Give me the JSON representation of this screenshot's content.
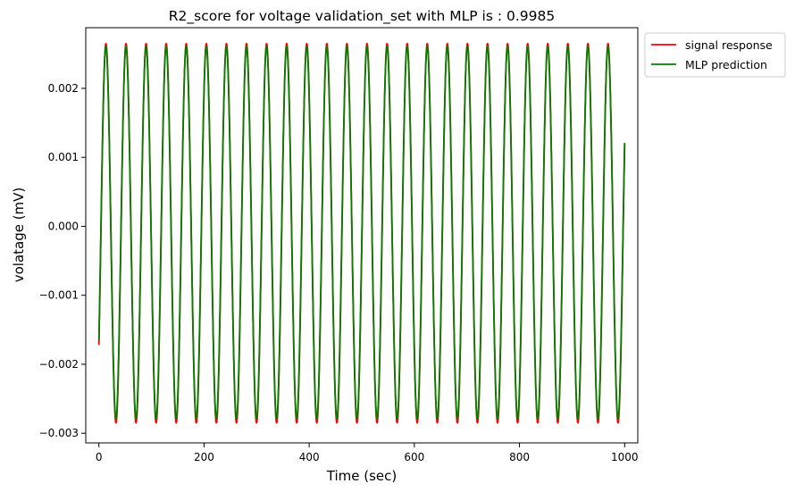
{
  "chart_data": {
    "type": "line",
    "title": "R2_score for voltage validation_set with MLP is : 0.9985",
    "xlabel": "Time (sec)",
    "ylabel": "volatage (mV)",
    "xlim": [
      -25,
      1025
    ],
    "ylim": [
      -0.00314,
      0.00288
    ],
    "xticks": [
      0,
      200,
      400,
      600,
      800,
      1000
    ],
    "xtick_labels": [
      "0",
      "200",
      "400",
      "600",
      "800",
      "1000"
    ],
    "yticks": [
      -0.003,
      -0.002,
      -0.001,
      0.0,
      0.001,
      0.002
    ],
    "ytick_labels": [
      "−0.003",
      "−0.002",
      "−0.001",
      "0.000",
      "0.001",
      "0.002"
    ],
    "grid": false,
    "legend_position": "outside-top-right",
    "series": [
      {
        "name": "signal response",
        "color": "#ff0000",
        "model": "sinusoid",
        "x_range": [
          0,
          1000
        ],
        "period": 38.2,
        "amplitude": 0.00275,
        "offset": -0.0001,
        "start_value": -0.00172,
        "end_value": 0.00165
      },
      {
        "name": "MLP prediction",
        "color": "#008000",
        "model": "sinusoid",
        "x_range": [
          0,
          1000
        ],
        "period": 38.2,
        "amplitude": 0.0027,
        "offset": -9e-05,
        "start_value": -0.00165,
        "end_value": 0.0017
      }
    ]
  }
}
